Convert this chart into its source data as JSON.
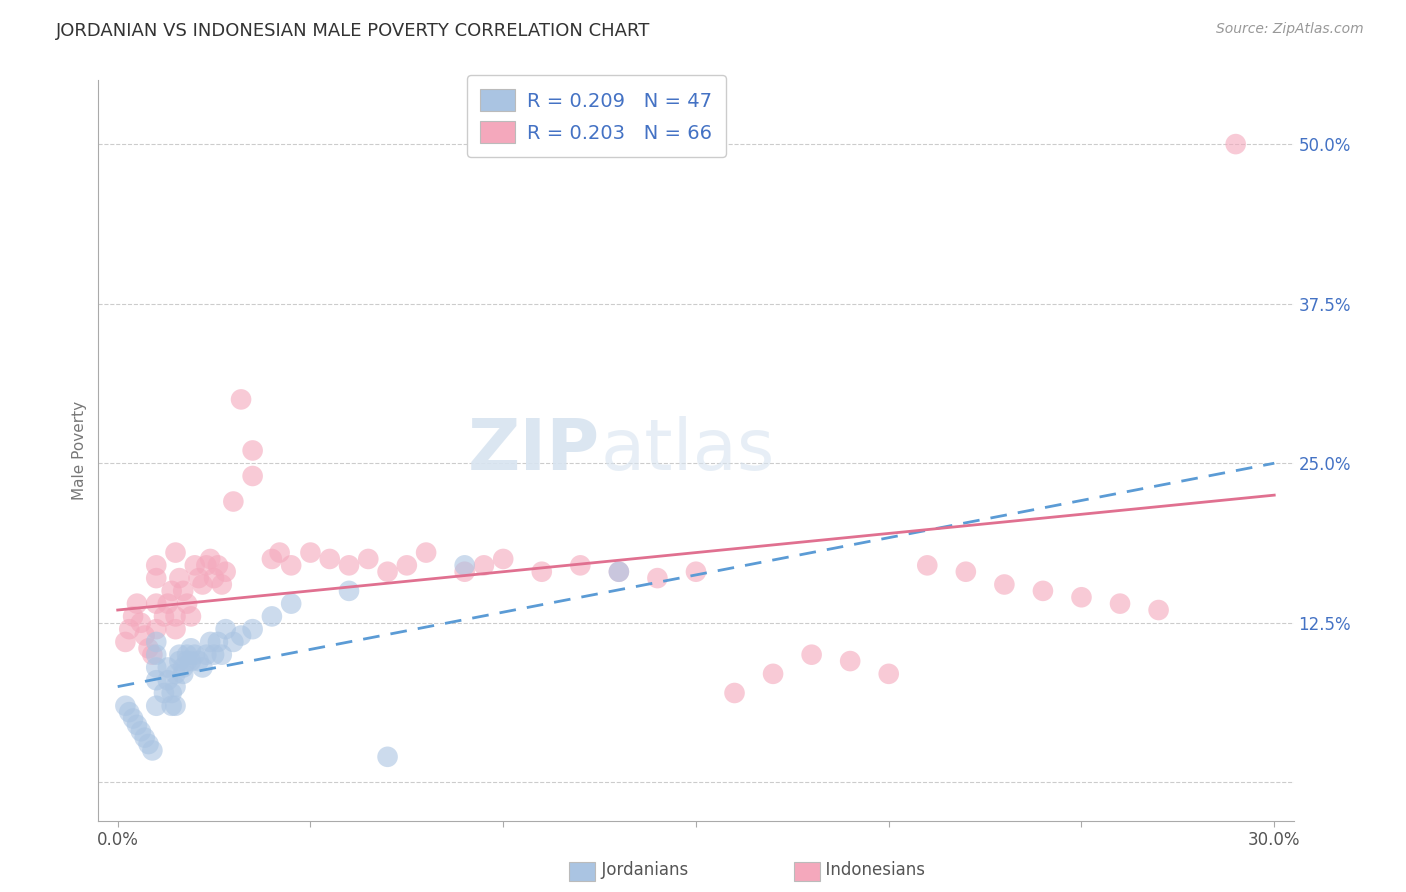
{
  "title": "JORDANIAN VS INDONESIAN MALE POVERTY CORRELATION CHART",
  "source_text": "Source: ZipAtlas.com",
  "ylabel": "Male Poverty",
  "xlim": [
    -0.005,
    0.305
  ],
  "ylim": [
    -0.03,
    0.55
  ],
  "xtick_positions": [
    0.0,
    0.05,
    0.1,
    0.15,
    0.2,
    0.25,
    0.3
  ],
  "xtick_labels": [
    "0.0%",
    "",
    "",
    "",
    "",
    "",
    "30.0%"
  ],
  "ytick_positions": [
    0.0,
    0.125,
    0.25,
    0.375,
    0.5
  ],
  "ytick_labels": [
    "",
    "12.5%",
    "25.0%",
    "37.5%",
    "50.0%"
  ],
  "jordan_R": 0.209,
  "jordan_N": 47,
  "indonesian_R": 0.203,
  "indonesian_N": 66,
  "jordan_color": "#aac4e2",
  "indonesian_color": "#f4a8bc",
  "jordan_line_color": "#5b9bd5",
  "indonesian_line_color": "#e07090",
  "legend_text_color": "#4472c4",
  "tick_color": "#4472c4",
  "background_color": "#ffffff",
  "jordan_x": [
    0.002,
    0.003,
    0.004,
    0.005,
    0.006,
    0.007,
    0.008,
    0.009,
    0.01,
    0.01,
    0.01,
    0.01,
    0.01,
    0.012,
    0.013,
    0.013,
    0.014,
    0.014,
    0.015,
    0.015,
    0.015,
    0.016,
    0.016,
    0.017,
    0.017,
    0.018,
    0.018,
    0.019,
    0.019,
    0.02,
    0.021,
    0.022,
    0.023,
    0.024,
    0.025,
    0.026,
    0.027,
    0.028,
    0.03,
    0.032,
    0.035,
    0.04,
    0.045,
    0.06,
    0.07,
    0.09,
    0.13
  ],
  "jordan_y": [
    0.06,
    0.055,
    0.05,
    0.045,
    0.04,
    0.035,
    0.03,
    0.025,
    0.08,
    0.09,
    0.1,
    0.11,
    0.06,
    0.07,
    0.08,
    0.09,
    0.06,
    0.07,
    0.06,
    0.075,
    0.085,
    0.095,
    0.1,
    0.085,
    0.09,
    0.095,
    0.1,
    0.095,
    0.105,
    0.1,
    0.095,
    0.09,
    0.1,
    0.11,
    0.1,
    0.11,
    0.1,
    0.12,
    0.11,
    0.115,
    0.12,
    0.13,
    0.14,
    0.15,
    0.02,
    0.17,
    0.165
  ],
  "indonesian_x": [
    0.002,
    0.003,
    0.004,
    0.005,
    0.006,
    0.007,
    0.008,
    0.009,
    0.01,
    0.01,
    0.01,
    0.01,
    0.012,
    0.013,
    0.014,
    0.015,
    0.015,
    0.015,
    0.016,
    0.017,
    0.018,
    0.019,
    0.02,
    0.021,
    0.022,
    0.023,
    0.024,
    0.025,
    0.026,
    0.027,
    0.028,
    0.03,
    0.032,
    0.035,
    0.035,
    0.04,
    0.042,
    0.045,
    0.05,
    0.055,
    0.06,
    0.065,
    0.07,
    0.075,
    0.08,
    0.09,
    0.095,
    0.1,
    0.11,
    0.12,
    0.13,
    0.14,
    0.15,
    0.16,
    0.17,
    0.18,
    0.19,
    0.2,
    0.21,
    0.22,
    0.23,
    0.24,
    0.25,
    0.26,
    0.27,
    0.29
  ],
  "indonesian_y": [
    0.11,
    0.12,
    0.13,
    0.14,
    0.125,
    0.115,
    0.105,
    0.1,
    0.12,
    0.14,
    0.16,
    0.17,
    0.13,
    0.14,
    0.15,
    0.12,
    0.13,
    0.18,
    0.16,
    0.15,
    0.14,
    0.13,
    0.17,
    0.16,
    0.155,
    0.17,
    0.175,
    0.16,
    0.17,
    0.155,
    0.165,
    0.22,
    0.3,
    0.24,
    0.26,
    0.175,
    0.18,
    0.17,
    0.18,
    0.175,
    0.17,
    0.175,
    0.165,
    0.17,
    0.18,
    0.165,
    0.17,
    0.175,
    0.165,
    0.17,
    0.165,
    0.16,
    0.165,
    0.07,
    0.085,
    0.1,
    0.095,
    0.085,
    0.17,
    0.165,
    0.155,
    0.15,
    0.145,
    0.14,
    0.135,
    0.5
  ]
}
